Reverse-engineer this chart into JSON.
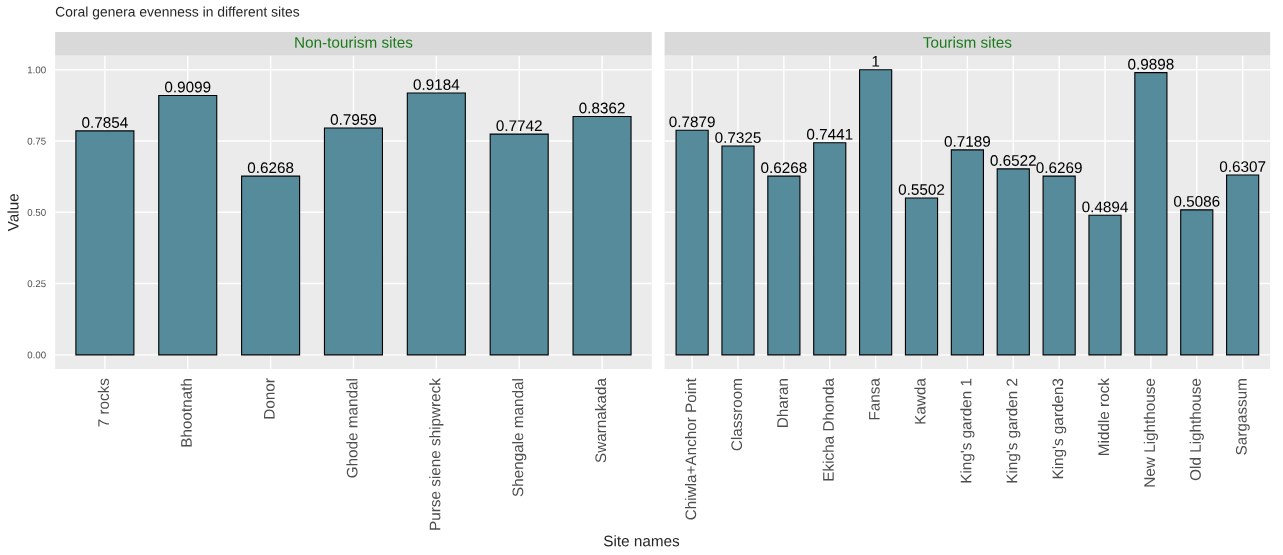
{
  "chart_data": [
    {
      "type": "bar",
      "title": "Coral genera evenness in different sites",
      "subtitle": "Non-tourism sites",
      "xlabel": "Site names",
      "ylabel": "Value",
      "categories": [
        "7 rocks",
        "Bhootnath",
        "Donor",
        "Ghode mandal",
        "Purse siene shipwreck",
        "Shengale mandal",
        "Swarnakada"
      ],
      "values": [
        0.7854,
        0.9099,
        0.6268,
        0.7959,
        0.9184,
        0.7742,
        0.8362
      ],
      "color": "#568b9c",
      "ylim": [
        -0.05,
        1.05
      ],
      "yticks": [
        {
          "value": 0,
          "label": "0.00"
        },
        {
          "value": 0.25,
          "label": "0.25"
        },
        {
          "value": 0.5,
          "label": "0.50"
        },
        {
          "value": 0.75,
          "label": "0.75"
        },
        {
          "value": 1,
          "label": "1.00"
        }
      ],
      "grid": true,
      "data_labels": true
    },
    {
      "type": "bar",
      "subtitle": "Tourism sites",
      "categories": [
        "Chiwla+Anchor Point",
        "Classroom",
        "Dharan",
        "Ekicha Dhonda",
        "Fansa",
        "Kawda",
        "King's garden 1",
        "King's garden 2",
        "King's garden3",
        "Middle rock",
        "New Lighthouse",
        "Old Lighthouse",
        "Sargassum"
      ],
      "values": [
        0.7879,
        0.7325,
        0.6268,
        0.7441,
        1,
        0.5502,
        0.7189,
        0.6522,
        0.6269,
        0.4894,
        0.9898,
        0.5086,
        0.6307
      ],
      "color": "#568b9c",
      "ylim": [
        -0.05,
        1.05
      ],
      "yticks": [
        {
          "value": 0,
          "label": null
        },
        {
          "value": 0.25,
          "label": null
        },
        {
          "value": 0.5,
          "label": null
        },
        {
          "value": 0.75,
          "label": null
        },
        {
          "value": 1,
          "label": null
        }
      ],
      "grid": true,
      "data_labels": true,
      "tick_labels": "x"
    }
  ]
}
